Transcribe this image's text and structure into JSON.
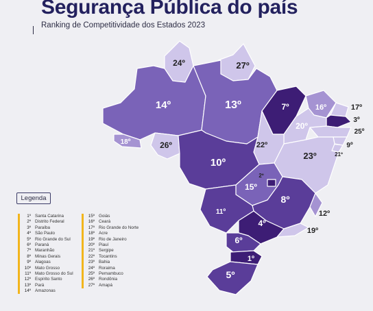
{
  "title": "Segurança Pública do país",
  "subtitle": "Ranking de Competitividade dos Estados 2023",
  "legend_title": "Legenda",
  "colors": {
    "darkest": "#3d1d75",
    "dark": "#5a3d99",
    "medium": "#7a63b8",
    "light": "#a593d2",
    "lightest": "#cfc6ea",
    "legend_bar": "#f2b51c"
  },
  "map_labels": [
    {
      "state": "Roraima",
      "rank": "24º"
    },
    {
      "state": "Amapá",
      "rank": "27º"
    },
    {
      "state": "Amazonas",
      "rank": "14º"
    },
    {
      "state": "Pará",
      "rank": "13º"
    },
    {
      "state": "Maranhão",
      "rank": "7º"
    },
    {
      "state": "Ceará",
      "rank": "16º"
    },
    {
      "state": "Rio Grande do Norte",
      "rank": "17º"
    },
    {
      "state": "Paraíba",
      "rank": "3º"
    },
    {
      "state": "Pernambuco",
      "rank": "25º"
    },
    {
      "state": "Piauí",
      "rank": "20º"
    },
    {
      "state": "Alagoas",
      "rank": "9º"
    },
    {
      "state": "Sergipe",
      "rank": "21º"
    },
    {
      "state": "Acre",
      "rank": "18º"
    },
    {
      "state": "Rondônia",
      "rank": "26º"
    },
    {
      "state": "Tocantins",
      "rank": "22º"
    },
    {
      "state": "Bahia",
      "rank": "23º"
    },
    {
      "state": "Mato Grosso",
      "rank": "10º"
    },
    {
      "state": "Distrito Federal",
      "rank": "2º"
    },
    {
      "state": "Goiás",
      "rank": "15º"
    },
    {
      "state": "Minas Gerais",
      "rank": "8º"
    },
    {
      "state": "Mato Grosso do Sul",
      "rank": "11º"
    },
    {
      "state": "Espírito Santo",
      "rank": "12º"
    },
    {
      "state": "São Paulo",
      "rank": "4º"
    },
    {
      "state": "Rio de Janeiro",
      "rank": "19º"
    },
    {
      "state": "Paraná",
      "rank": "6º"
    },
    {
      "state": "Santa Catarina",
      "rank": "1º"
    },
    {
      "state": "Rio Grande do Sul",
      "rank": "5º"
    }
  ],
  "legend": [
    {
      "rank": "1º",
      "state": "Santa Catarina"
    },
    {
      "rank": "2º",
      "state": "Distrito Federal"
    },
    {
      "rank": "3º",
      "state": "Paraíba"
    },
    {
      "rank": "4º",
      "state": "São Paulo"
    },
    {
      "rank": "5º",
      "state": "Rio Grande do Sul"
    },
    {
      "rank": "6º",
      "state": "Paraná"
    },
    {
      "rank": "7º",
      "state": "Maranhão"
    },
    {
      "rank": "8º",
      "state": "Minas Gerais"
    },
    {
      "rank": "9º",
      "state": "Alagoas"
    },
    {
      "rank": "10º",
      "state": "Mato Grosso"
    },
    {
      "rank": "11º",
      "state": "Mato Grosso do Sul"
    },
    {
      "rank": "12º",
      "state": "Espírito Santo"
    },
    {
      "rank": "13º",
      "state": "Pará"
    },
    {
      "rank": "14º",
      "state": "Amazonas"
    },
    {
      "rank": "15º",
      "state": "Goiás"
    },
    {
      "rank": "16º",
      "state": "Ceará"
    },
    {
      "rank": "17º",
      "state": "Rio Grande do Norte"
    },
    {
      "rank": "18º",
      "state": "Acre"
    },
    {
      "rank": "19º",
      "state": "Rio de Janeiro"
    },
    {
      "rank": "20º",
      "state": "Piauí"
    },
    {
      "rank": "21º",
      "state": "Sergipe"
    },
    {
      "rank": "22º",
      "state": "Tocantins"
    },
    {
      "rank": "23º",
      "state": "Bahia"
    },
    {
      "rank": "24º",
      "state": "Roraima"
    },
    {
      "rank": "25º",
      "state": "Pernambuco"
    },
    {
      "rank": "26º",
      "state": "Rondônia"
    },
    {
      "rank": "27º",
      "state": "Amapá"
    }
  ]
}
